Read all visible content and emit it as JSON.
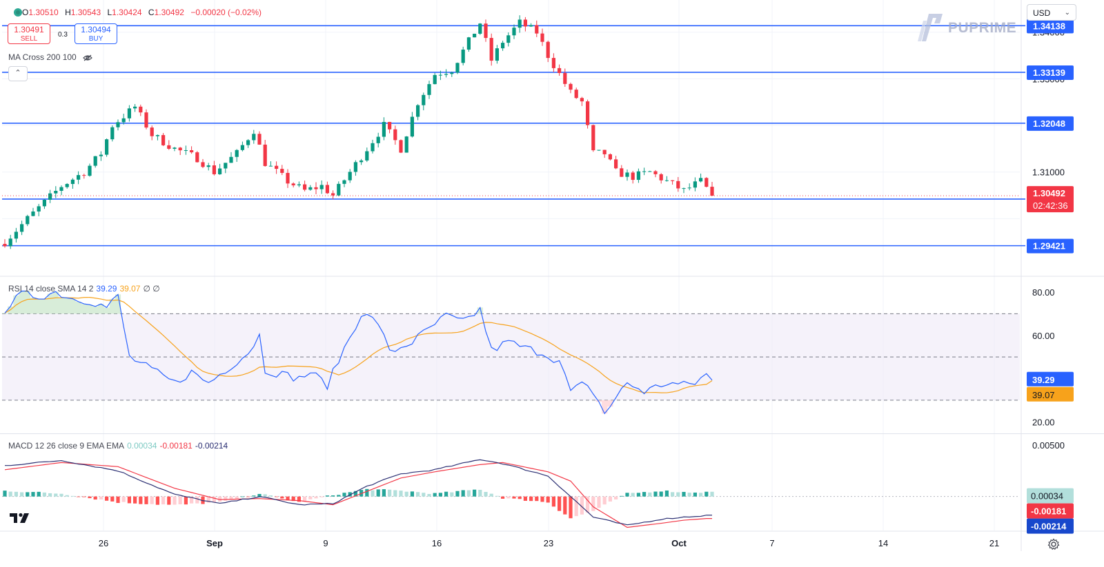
{
  "ohlc": {
    "open_label": "O",
    "open": "1.30510",
    "high_label": "H",
    "high": "1.30543",
    "low_label": "L",
    "low": "1.30424",
    "close_label": "C",
    "close": "1.30492",
    "change": "−0.00020 (−0.02%)"
  },
  "trade": {
    "sell_price": "1.30491",
    "sell_label": "SELL",
    "buy_price": "1.30494",
    "buy_label": "BUY",
    "spread": "0.3"
  },
  "indicator_ma": "MA Cross 200 100",
  "currency": "USD",
  "brand": "PUPRIME",
  "rsi_legend": {
    "label": "RSI 14 close SMA 14 2",
    "rsi": "39.29",
    "sma": "39.07",
    "extra": "∅ ∅"
  },
  "macd_legend": {
    "label": "MACD 12 26 close 9 EMA EMA",
    "hist": "0.00034",
    "macd": "-0.00181",
    "signal": "-0.00214"
  },
  "colors": {
    "up": "#089981",
    "down": "#f23645",
    "level": "#2962ff",
    "rsi": "#2962ff",
    "rsi_sma": "#f7a21b",
    "macd_line": "#2a2e72",
    "signal_line": "#f23645",
    "badge_dark": "#1848cc"
  },
  "chart_data": {
    "type": "candlestick",
    "price_axis": {
      "ticks": [
        "1.34000",
        "1.33000",
        "1.31000"
      ],
      "ylim": [
        1.2878,
        1.3469
      ]
    },
    "time_axis": {
      "labels": [
        "26",
        "Sep",
        "9",
        "16",
        "23",
        "Oct",
        "7",
        "14",
        "21"
      ]
    },
    "horizontal_levels": [
      "1.34138",
      "1.33139",
      "1.32048",
      "1.30421",
      "1.29421"
    ],
    "last_price": "1.30492",
    "countdown": "02:42:36",
    "price_anchors": [
      [
        0,
        1.295
      ],
      [
        4,
        1.3
      ],
      [
        10,
        1.307
      ],
      [
        14,
        1.31
      ],
      [
        17,
        1.314
      ],
      [
        19,
        1.32
      ],
      [
        23,
        1.324
      ],
      [
        26,
        1.318
      ],
      [
        30,
        1.315
      ],
      [
        34,
        1.313
      ],
      [
        37,
        1.31
      ],
      [
        41,
        1.314
      ],
      [
        44,
        1.319
      ],
      [
        46,
        1.312
      ],
      [
        50,
        1.308
      ],
      [
        53,
        1.306
      ],
      [
        56,
        1.307
      ],
      [
        58,
        1.305
      ],
      [
        61,
        1.31
      ],
      [
        64,
        1.315
      ],
      [
        67,
        1.32
      ],
      [
        70,
        1.315
      ],
      [
        73,
        1.325
      ],
      [
        76,
        1.331
      ],
      [
        79,
        1.332
      ],
      [
        82,
        1.338
      ],
      [
        84,
        1.342
      ],
      [
        86,
        1.334
      ],
      [
        88,
        1.338
      ],
      [
        91,
        1.342
      ],
      [
        94,
        1.34
      ],
      [
        96,
        1.335
      ],
      [
        98,
        1.331
      ],
      [
        100,
        1.327
      ],
      [
        102,
        1.325
      ],
      [
        104,
        1.314
      ],
      [
        106,
        1.314
      ],
      [
        108,
        1.31
      ],
      [
        111,
        1.309
      ],
      [
        114,
        1.31
      ],
      [
        117,
        1.308
      ],
      [
        120,
        1.306
      ],
      [
        123,
        1.308
      ],
      [
        125,
        1.3049
      ]
    ],
    "rsi": {
      "ticks": [
        "80.00",
        "60.00",
        "20.00"
      ],
      "ylim": [
        15,
        87
      ],
      "overbought": 70,
      "middle": 50,
      "oversold": 30,
      "last": "39.29",
      "sma_last": "39.07",
      "anchors": [
        [
          0,
          72
        ],
        [
          3,
          79
        ],
        [
          6,
          78
        ],
        [
          9,
          80
        ],
        [
          12,
          77
        ],
        [
          15,
          76
        ],
        [
          18,
          73
        ],
        [
          20,
          78
        ],
        [
          22,
          50
        ],
        [
          26,
          44
        ],
        [
          30,
          38
        ],
        [
          33,
          43
        ],
        [
          36,
          38
        ],
        [
          40,
          46
        ],
        [
          43,
          52
        ],
        [
          45,
          60
        ],
        [
          46,
          44
        ],
        [
          49,
          42
        ],
        [
          52,
          40
        ],
        [
          54,
          43
        ],
        [
          57,
          37
        ],
        [
          60,
          54
        ],
        [
          63,
          70
        ],
        [
          66,
          66
        ],
        [
          68,
          52
        ],
        [
          72,
          57
        ],
        [
          75,
          63
        ],
        [
          78,
          69
        ],
        [
          81,
          66
        ],
        [
          84,
          72
        ],
        [
          86,
          53
        ],
        [
          89,
          57
        ],
        [
          92,
          54
        ],
        [
          95,
          52
        ],
        [
          98,
          48
        ],
        [
          100,
          34
        ],
        [
          102,
          37
        ],
        [
          104,
          34
        ],
        [
          106,
          24
        ],
        [
          108,
          31
        ],
        [
          110,
          38
        ],
        [
          113,
          34
        ],
        [
          117,
          38
        ],
        [
          120,
          37
        ],
        [
          122,
          38
        ],
        [
          124,
          42
        ],
        [
          125,
          39.29
        ]
      ]
    },
    "macd": {
      "ticks": [
        "0.00500"
      ],
      "ylim": [
        -0.0033,
        0.006
      ],
      "zero": 0,
      "hist_last": "0.00034",
      "macd_last": "-0.00181",
      "signal_last": "-0.00214",
      "macd_anchors": [
        [
          0,
          0.003
        ],
        [
          10,
          0.0035
        ],
        [
          20,
          0.0025
        ],
        [
          30,
          0.0002
        ],
        [
          38,
          -0.0007
        ],
        [
          45,
          0.0
        ],
        [
          52,
          -0.0008
        ],
        [
          58,
          -0.0007
        ],
        [
          64,
          0.001
        ],
        [
          70,
          0.0022
        ],
        [
          76,
          0.0026
        ],
        [
          84,
          0.0036
        ],
        [
          88,
          0.0032
        ],
        [
          96,
          0.002
        ],
        [
          100,
          0.0
        ],
        [
          104,
          -0.002
        ],
        [
          110,
          -0.0028
        ],
        [
          116,
          -0.0022
        ],
        [
          120,
          -0.002
        ],
        [
          125,
          -0.0018
        ]
      ],
      "signal_anchors": [
        [
          0,
          0.0026
        ],
        [
          10,
          0.0033
        ],
        [
          20,
          0.0029
        ],
        [
          30,
          0.0008
        ],
        [
          38,
          -0.0003
        ],
        [
          45,
          -0.0002
        ],
        [
          52,
          -0.0004
        ],
        [
          58,
          -0.0008
        ],
        [
          64,
          0.0005
        ],
        [
          70,
          0.0018
        ],
        [
          76,
          0.0024
        ],
        [
          84,
          0.0031
        ],
        [
          88,
          0.0033
        ],
        [
          96,
          0.0024
        ],
        [
          100,
          0.0015
        ],
        [
          104,
          -0.001
        ],
        [
          110,
          -0.003
        ],
        [
          116,
          -0.0026
        ],
        [
          120,
          -0.0023
        ],
        [
          125,
          -0.0021
        ]
      ]
    }
  }
}
